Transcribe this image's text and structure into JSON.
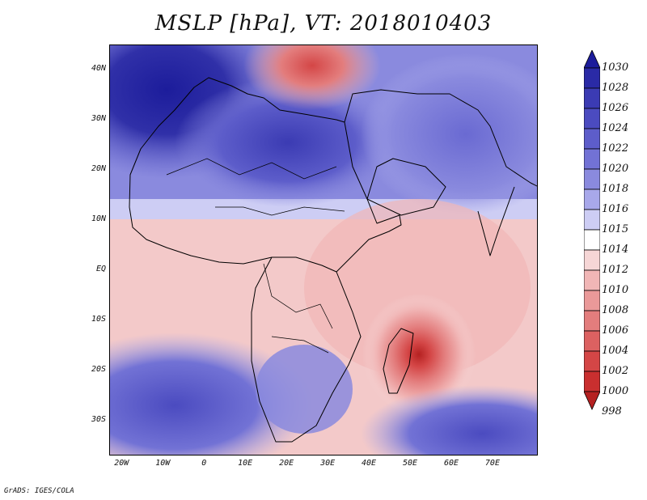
{
  "title": "MSLP [hPa], VT: 2018010403",
  "credit": "GrADS: IGES/COLA",
  "map": {
    "lon_range": [
      -23,
      81
    ],
    "lat_range": [
      -37,
      45
    ],
    "lat_ticks": [
      {
        "value": 40,
        "label": "40N"
      },
      {
        "value": 30,
        "label": "30N"
      },
      {
        "value": 20,
        "label": "20N"
      },
      {
        "value": 10,
        "label": "10N"
      },
      {
        "value": 0,
        "label": "EQ"
      },
      {
        "value": -10,
        "label": "10S"
      },
      {
        "value": -20,
        "label": "20S"
      },
      {
        "value": -30,
        "label": "30S"
      }
    ],
    "lon_ticks": [
      {
        "value": -20,
        "label": "20W"
      },
      {
        "value": -10,
        "label": "10W"
      },
      {
        "value": 0,
        "label": "0"
      },
      {
        "value": 10,
        "label": "10E"
      },
      {
        "value": 20,
        "label": "20E"
      },
      {
        "value": 30,
        "label": "30E"
      },
      {
        "value": 40,
        "label": "40E"
      },
      {
        "value": 50,
        "label": "50E"
      },
      {
        "value": 60,
        "label": "60E"
      },
      {
        "value": 70,
        "label": "70E"
      }
    ]
  },
  "colorbar": {
    "levels": [
      "1030",
      "1028",
      "1026",
      "1024",
      "1022",
      "1020",
      "1018",
      "1016",
      "1015",
      "1014",
      "1012",
      "1010",
      "1008",
      "1006",
      "1004",
      "1002",
      "1000",
      "998"
    ],
    "colors": [
      "#1c1c9b",
      "#2a2aa6",
      "#3b3bb3",
      "#4b4bc0",
      "#5d5dca",
      "#7272d5",
      "#8a8ade",
      "#a8a8ea",
      "#cdcdf4",
      "#ffffff",
      "#f6d6d6",
      "#f1b6b6",
      "#ea9999",
      "#e37d7d",
      "#dc6161",
      "#d44646",
      "#c92f2f",
      "#b52121"
    ]
  }
}
